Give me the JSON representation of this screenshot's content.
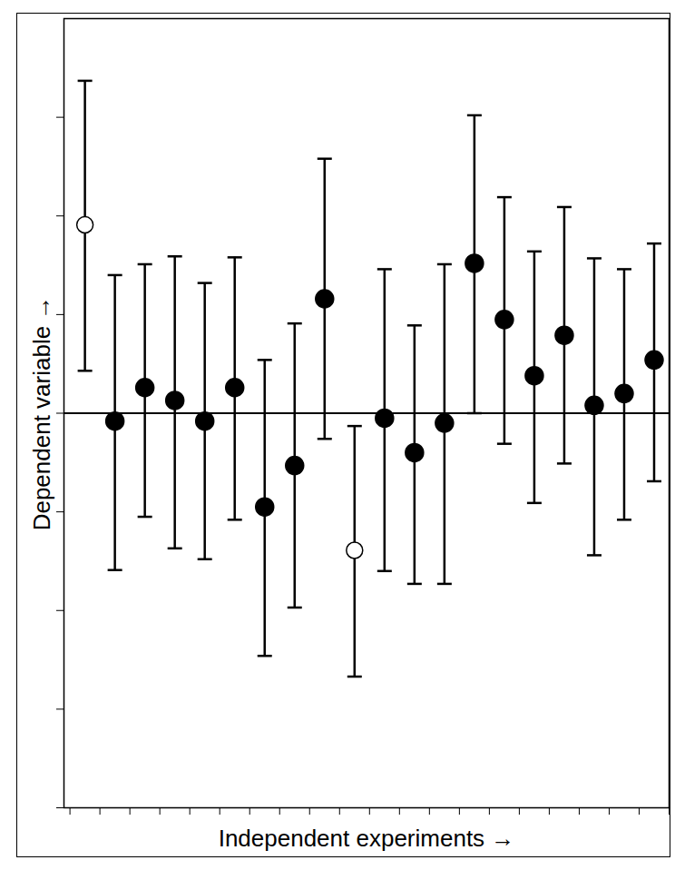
{
  "chart_data": {
    "type": "scatter",
    "x_label": "Independent experiments",
    "y_label": "Dependent variable",
    "xlim": [
      0.3,
      20.5
    ],
    "xticks": [
      0.5,
      1.5,
      2.5,
      3.5,
      4.5,
      5.5,
      6.5,
      7.5,
      8.5,
      9.5,
      10.5,
      11.5,
      12.5,
      13.5,
      14.5,
      15.5,
      16.5,
      17.5,
      18.5,
      19.5,
      20.5
    ],
    "ylim": [
      0,
      8
    ],
    "yticks": [
      0,
      1,
      2,
      3,
      4,
      5,
      6,
      7
    ],
    "tick_labels": false,
    "grid": false,
    "reference_line": 4,
    "series": [
      {
        "marker": "open",
        "color": "#000000",
        "x": [
          1,
          10
        ],
        "values": [
          5.91,
          2.61
        ],
        "error_lower": [
          4.43,
          1.33
        ],
        "error_upper": [
          7.37,
          3.87
        ]
      },
      {
        "marker": "filled",
        "color": "#000000",
        "x": [
          2,
          3,
          4,
          5,
          6,
          7,
          8,
          9,
          11,
          12,
          13,
          14,
          15,
          16,
          17,
          18,
          19,
          20
        ],
        "values": [
          3.92,
          4.26,
          4.13,
          3.92,
          4.26,
          3.05,
          3.47,
          5.16,
          3.95,
          3.6,
          3.9,
          5.52,
          4.95,
          4.38,
          4.79,
          4.08,
          4.2,
          4.54
        ],
        "error_lower": [
          2.41,
          2.95,
          2.63,
          2.52,
          2.92,
          1.54,
          2.03,
          3.74,
          2.4,
          2.27,
          2.27,
          4.0,
          3.69,
          3.09,
          3.49,
          2.56,
          2.92,
          3.31
        ],
        "error_upper": [
          5.4,
          5.51,
          5.59,
          5.32,
          5.58,
          4.54,
          4.91,
          6.58,
          5.46,
          4.89,
          5.51,
          7.02,
          6.19,
          5.64,
          6.09,
          5.57,
          5.46,
          5.72
        ]
      }
    ]
  }
}
